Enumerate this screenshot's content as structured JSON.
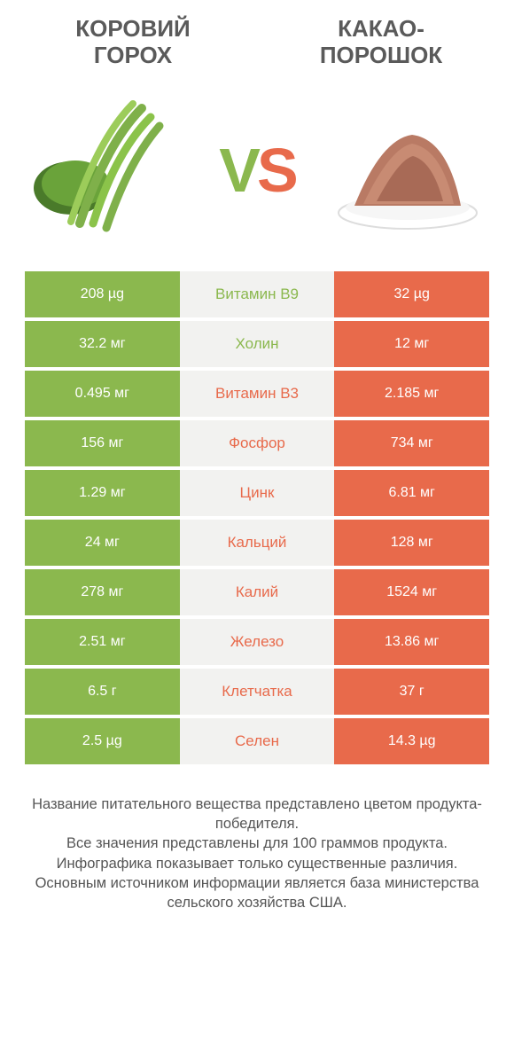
{
  "colors": {
    "left": "#8bb84e",
    "right": "#e86a4b",
    "mid_bg": "#f2f2f0",
    "title": "#5a5a5a",
    "footer": "#555555"
  },
  "header": {
    "left": "КОРОВИЙ ГОРОХ",
    "right": "КАКАО-ПОРОШОК"
  },
  "vs": {
    "v": "V",
    "s": "S"
  },
  "rows": [
    {
      "left": "208 µg",
      "label": "Витамин B9",
      "right": "32 µg",
      "winner": "left"
    },
    {
      "left": "32.2 мг",
      "label": "Холин",
      "right": "12 мг",
      "winner": "left"
    },
    {
      "left": "0.495 мг",
      "label": "Витамин B3",
      "right": "2.185 мг",
      "winner": "right"
    },
    {
      "left": "156 мг",
      "label": "Фосфор",
      "right": "734 мг",
      "winner": "right"
    },
    {
      "left": "1.29 мг",
      "label": "Цинк",
      "right": "6.81 мг",
      "winner": "right"
    },
    {
      "left": "24 мг",
      "label": "Кальций",
      "right": "128 мг",
      "winner": "right"
    },
    {
      "left": "278 мг",
      "label": "Калий",
      "right": "1524 мг",
      "winner": "right"
    },
    {
      "left": "2.51 мг",
      "label": "Железо",
      "right": "13.86 мг",
      "winner": "right"
    },
    {
      "left": "6.5 г",
      "label": "Клетчатка",
      "right": "37 г",
      "winner": "right"
    },
    {
      "left": "2.5 µg",
      "label": "Селен",
      "right": "14.3 µg",
      "winner": "right"
    }
  ],
  "footer": {
    "l1": "Название питательного вещества представлено цветом продукта-победителя.",
    "l2": "Все значения представлены для 100 граммов продукта.",
    "l3": "Инфографика показывает только существенные различия.",
    "l4": "Основным источником информации является база министерства сельского хозяйства США."
  }
}
